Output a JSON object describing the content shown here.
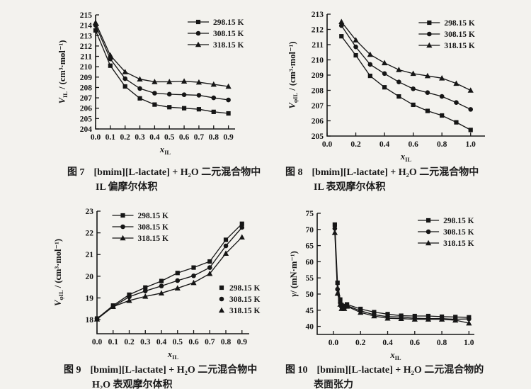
{
  "page": {
    "background": "#f3f2ee",
    "ink": "#161616"
  },
  "temperature_legend": [
    "298.15 K",
    "308.15 K",
    "318.15 K"
  ],
  "chart_data": [
    {
      "type": "line",
      "fig": "figure-7",
      "caption": {
        "tag": "图 7",
        "line1": "[bmim][L-lactate] + H₂O 二元混合物中",
        "line2": "IL 偏摩尔体积"
      },
      "ylabel": {
        "sym": "V",
        "sub": "IL",
        "unit": " / (cm³·mol⁻¹)"
      },
      "xlabel": {
        "sym": "x",
        "sub": "IL"
      },
      "xlim": [
        0,
        0.945
      ],
      "ylim": [
        204,
        215
      ],
      "grid": false,
      "legend_position": "top-right-inside",
      "legend": {
        "fx": 0.66,
        "fy": 10,
        "line": true
      },
      "xticks": [
        "0.0",
        "0.1",
        "0.2",
        "0.3",
        "0.4",
        "0.5",
        "0.6",
        "0.7",
        "0.8",
        "0.9"
      ],
      "yticks": [
        "204",
        "205",
        "206",
        "207",
        "208",
        "209",
        "210",
        "211",
        "212",
        "213",
        "214",
        "215"
      ],
      "series": [
        {
          "name": "298.15 K",
          "marker": "square",
          "x": [
            0,
            0.1,
            0.2,
            0.3,
            0.4,
            0.5,
            0.6,
            0.7,
            0.8,
            0.9
          ],
          "y": [
            213.5,
            210.1,
            208.1,
            206.95,
            206.35,
            206.1,
            206.0,
            205.9,
            205.65,
            205.5
          ]
        },
        {
          "name": "308.15 K",
          "marker": "circle",
          "x": [
            0,
            0.1,
            0.2,
            0.3,
            0.4,
            0.5,
            0.6,
            0.7,
            0.8,
            0.9
          ],
          "y": [
            214.0,
            210.75,
            208.85,
            207.9,
            207.45,
            207.35,
            207.3,
            207.25,
            207.0,
            206.8
          ]
        },
        {
          "name": "318.15 K",
          "marker": "triangle",
          "x": [
            0,
            0.1,
            0.2,
            0.3,
            0.4,
            0.5,
            0.6,
            0.7,
            0.8,
            0.9
          ],
          "y": [
            214.25,
            211.1,
            209.5,
            208.8,
            208.55,
            208.55,
            208.6,
            208.5,
            208.3,
            208.1
          ]
        }
      ]
    },
    {
      "type": "line",
      "fig": "figure-8",
      "caption": {
        "tag": "图 8",
        "line1": "[bmim][L-lactate] + H₂O 二元混合物中",
        "line2": "IL 表观摩尔体积"
      },
      "ylabel": {
        "sym": "V",
        "sub": "φIL",
        "unit": " / (cm³·mol⁻¹)"
      },
      "xlabel": {
        "sym": "x",
        "sub": "IL"
      },
      "xlim": [
        0,
        1.1
      ],
      "ylim": [
        205,
        213
      ],
      "grid": false,
      "legend_position": "top-right-inside",
      "legend": {
        "fx": 0.58,
        "fy": 12,
        "line": true
      },
      "xticks": [
        "0.0",
        "0.2",
        "0.4",
        "0.6",
        "0.8",
        "1.0"
      ],
      "yticks": [
        "205",
        "206",
        "207",
        "208",
        "209",
        "210",
        "211",
        "212",
        "213"
      ],
      "series": [
        {
          "name": "298.15 K",
          "marker": "square",
          "x": [
            0.1,
            0.2,
            0.3,
            0.4,
            0.5,
            0.6,
            0.7,
            0.8,
            0.9,
            1.0
          ],
          "y": [
            211.55,
            210.3,
            208.95,
            208.2,
            207.6,
            207.05,
            206.65,
            206.35,
            205.9,
            205.4
          ]
        },
        {
          "name": "308.15 K",
          "marker": "circle",
          "x": [
            0.1,
            0.2,
            0.3,
            0.4,
            0.5,
            0.6,
            0.7,
            0.8,
            0.9,
            1.0
          ],
          "y": [
            212.25,
            210.85,
            209.7,
            209.1,
            208.55,
            208.1,
            207.85,
            207.6,
            207.2,
            206.75
          ]
        },
        {
          "name": "318.15 K",
          "marker": "triangle",
          "x": [
            0.1,
            0.2,
            0.3,
            0.4,
            0.5,
            0.6,
            0.7,
            0.8,
            0.9,
            1.0
          ],
          "y": [
            212.5,
            211.3,
            210.35,
            209.8,
            209.35,
            209.1,
            208.95,
            208.8,
            208.45,
            208.0
          ]
        }
      ]
    },
    {
      "type": "line",
      "fig": "figure-9",
      "caption": {
        "tag": "图 9",
        "line1": "[bmim][L-lactate] + H₂O 二元混合物中",
        "line2": "H₂O 表观摩尔体积"
      },
      "ylabel": {
        "sym": "V",
        "sub": "φIL",
        "unit": " / (cm³·mol⁻¹)"
      },
      "xlabel": {
        "sym": "x",
        "sub": "IL"
      },
      "xlim": [
        0,
        0.945
      ],
      "ylim": [
        17.35,
        23
      ],
      "grid": false,
      "legend_position": "top-left-inside-plus-right-middle",
      "legend": {
        "fx": 0.1,
        "fy": 6,
        "line": true
      },
      "legend2": {
        "fx": 0.8,
        "fy": 108,
        "line": false
      },
      "xticks": [
        "0.0",
        "0.1",
        "0.2",
        "0.3",
        "0.4",
        "0.5",
        "0.6",
        "0.7",
        "0.8",
        "0.9"
      ],
      "yticks": [
        "18",
        "19",
        "20",
        "21",
        "22",
        "23"
      ],
      "series": [
        {
          "name": "298.15 K",
          "marker": "square",
          "x": [
            0,
            0.1,
            0.2,
            0.3,
            0.4,
            0.5,
            0.6,
            0.7,
            0.8,
            0.9
          ],
          "y": [
            18.05,
            18.65,
            19.15,
            19.48,
            19.78,
            20.15,
            20.4,
            20.68,
            21.68,
            22.42
          ]
        },
        {
          "name": "308.15 K",
          "marker": "circle",
          "x": [
            0,
            0.1,
            0.2,
            0.3,
            0.4,
            0.5,
            0.6,
            0.7,
            0.8,
            0.9
          ],
          "y": [
            18.05,
            18.6,
            19.05,
            19.32,
            19.55,
            19.8,
            20.02,
            20.4,
            21.4,
            22.25
          ]
        },
        {
          "name": "318.15 K",
          "marker": "triangle",
          "x": [
            0,
            0.1,
            0.2,
            0.3,
            0.4,
            0.5,
            0.6,
            0.7,
            0.8,
            0.9
          ],
          "y": [
            18.02,
            18.6,
            18.88,
            19.07,
            19.22,
            19.45,
            19.7,
            20.12,
            21.05,
            21.8
          ]
        }
      ]
    },
    {
      "type": "line",
      "fig": "figure-10",
      "caption": {
        "tag": "图 10",
        "line1": "[bmim][L-lactate] + H₂O 二元混合物的",
        "line2": "表面张力"
      },
      "ylabel": {
        "sym": "γ",
        "sub": "",
        "unit": "/ (mN·m⁻¹)"
      },
      "xlabel": {
        "sym": "x",
        "sub": "IL"
      },
      "xlim": [
        -0.12,
        1.04
      ],
      "ylim": [
        37.5,
        75
      ],
      "grid": false,
      "legend_position": "top-right-inside",
      "legend": {
        "fx": 0.64,
        "fy": 10,
        "line": true
      },
      "xticks": [
        "0.0",
        "0.2",
        "0.4",
        "0.6",
        "0.8",
        "1.0"
      ],
      "yticks": [
        "40",
        "45",
        "50",
        "55",
        "60",
        "65",
        "70",
        "75"
      ],
      "series": [
        {
          "name": "298.15 K",
          "marker": "square",
          "x": [
            0.01,
            0.03,
            0.05,
            0.06,
            0.08,
            0.1,
            0.2,
            0.3,
            0.4,
            0.5,
            0.6,
            0.7,
            0.8,
            0.9,
            1.0
          ],
          "y": [
            71.5,
            53.5,
            48.3,
            46.6,
            46.3,
            46.8,
            45.4,
            44.4,
            43.8,
            43.3,
            43.2,
            43.2,
            43.0,
            42.9,
            42.8
          ]
        },
        {
          "name": "308.15 K",
          "marker": "circle",
          "x": [
            0.01,
            0.03,
            0.05,
            0.06,
            0.08,
            0.1,
            0.2,
            0.3,
            0.4,
            0.5,
            0.6,
            0.7,
            0.8,
            0.9,
            1.0
          ],
          "y": [
            70.3,
            51.5,
            47.3,
            46.0,
            45.7,
            46.4,
            44.8,
            43.6,
            43.0,
            42.9,
            42.5,
            42.4,
            42.4,
            42.2,
            42.3
          ]
        },
        {
          "name": "318.15 K",
          "marker": "triangle",
          "x": [
            0.01,
            0.03,
            0.05,
            0.06,
            0.08,
            0.1,
            0.2,
            0.3,
            0.4,
            0.5,
            0.6,
            0.7,
            0.8,
            0.9,
            1.0
          ],
          "y": [
            69.0,
            50.2,
            46.8,
            45.5,
            45.5,
            46.2,
            44.3,
            43.2,
            42.5,
            42.4,
            42.2,
            42.2,
            42.2,
            41.9,
            41.0
          ]
        }
      ]
    }
  ]
}
